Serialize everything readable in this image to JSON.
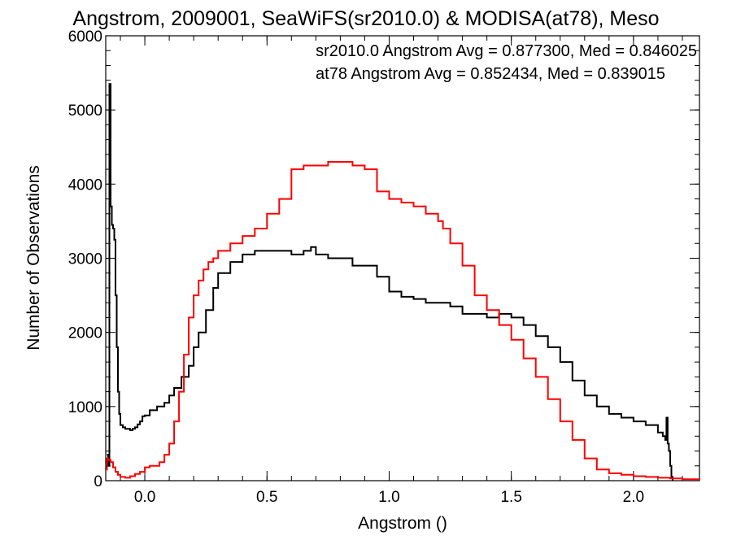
{
  "chart_data": {
    "type": "line",
    "title": "Angstrom, 2009001, SeaWiFS(sr2010.0) & MODISA(at78), Meso",
    "xlabel": "Angstrom ()",
    "ylabel": "Number of Observations",
    "xlim": [
      -0.16,
      2.27
    ],
    "ylim": [
      0,
      6000
    ],
    "x_ticks": [
      {
        "value": 0.0,
        "label": "0.0"
      },
      {
        "value": 0.5,
        "label": "0.5"
      },
      {
        "value": 1.0,
        "label": "1.0"
      },
      {
        "value": 1.5,
        "label": "1.5"
      },
      {
        "value": 2.0,
        "label": "2.0"
      }
    ],
    "y_ticks": [
      {
        "value": 0,
        "label": "0"
      },
      {
        "value": 1000,
        "label": "1000"
      },
      {
        "value": 2000,
        "label": "2000"
      },
      {
        "value": 3000,
        "label": "3000"
      },
      {
        "value": 4000,
        "label": "4000"
      },
      {
        "value": 5000,
        "label": "5000"
      },
      {
        "value": 6000,
        "label": "6000"
      }
    ],
    "grid": false,
    "legend": "none",
    "annotations": [
      {
        "text": "sr2010.0 Angstrom Avg = 0.877300, Med = 0.846025",
        "color": "#000000"
      },
      {
        "text": "at78 Angstrom Avg = 0.852434, Med = 0.839015",
        "color": "#ff0000"
      }
    ],
    "series": [
      {
        "color": "#000000",
        "x": [
          -0.155,
          -0.15,
          -0.145,
          -0.14,
          -0.135,
          -0.13,
          -0.125,
          -0.12,
          -0.115,
          -0.11,
          -0.105,
          -0.1,
          -0.09,
          -0.08,
          -0.07,
          -0.06,
          -0.05,
          -0.04,
          -0.03,
          -0.02,
          -0.01,
          0.0,
          0.02,
          0.05,
          0.08,
          0.1,
          0.12,
          0.15,
          0.18,
          0.2,
          0.22,
          0.25,
          0.28,
          0.3,
          0.35,
          0.4,
          0.45,
          0.5,
          0.55,
          0.6,
          0.65,
          0.68,
          0.7,
          0.75,
          0.8,
          0.85,
          0.9,
          0.95,
          1.0,
          1.05,
          1.1,
          1.15,
          1.2,
          1.25,
          1.3,
          1.35,
          1.4,
          1.45,
          1.5,
          1.55,
          1.6,
          1.65,
          1.7,
          1.75,
          1.8,
          1.85,
          1.9,
          1.95,
          2.0,
          2.05,
          2.1,
          2.12,
          2.13,
          2.135,
          2.14,
          2.145,
          2.15,
          2.155,
          2.16
        ],
        "values": [
          350,
          200,
          5350,
          3700,
          3450,
          3400,
          3250,
          2500,
          1800,
          1200,
          900,
          750,
          720,
          700,
          700,
          680,
          700,
          720,
          760,
          800,
          870,
          880,
          950,
          1000,
          1050,
          1150,
          1250,
          1400,
          1550,
          1800,
          2000,
          2300,
          2600,
          2800,
          2950,
          3050,
          3100,
          3100,
          3100,
          3050,
          3100,
          3150,
          3050,
          3000,
          3000,
          2900,
          2900,
          2750,
          2550,
          2480,
          2450,
          2400,
          2400,
          2350,
          2250,
          2250,
          2200,
          2250,
          2200,
          2100,
          1950,
          1800,
          1600,
          1350,
          1150,
          1000,
          900,
          850,
          800,
          750,
          650,
          600,
          550,
          850,
          500,
          400,
          200,
          50,
          0
        ]
      },
      {
        "color": "#ff0000",
        "x": [
          -0.16,
          -0.155,
          -0.15,
          -0.14,
          -0.13,
          -0.12,
          -0.11,
          -0.1,
          -0.08,
          -0.06,
          -0.04,
          -0.02,
          0.0,
          0.02,
          0.04,
          0.06,
          0.08,
          0.1,
          0.12,
          0.14,
          0.16,
          0.18,
          0.2,
          0.22,
          0.24,
          0.26,
          0.28,
          0.3,
          0.35,
          0.4,
          0.45,
          0.5,
          0.55,
          0.6,
          0.65,
          0.7,
          0.75,
          0.8,
          0.85,
          0.9,
          0.95,
          1.0,
          1.05,
          1.1,
          1.15,
          1.2,
          1.22,
          1.25,
          1.3,
          1.35,
          1.4,
          1.45,
          1.5,
          1.55,
          1.6,
          1.65,
          1.7,
          1.75,
          1.8,
          1.85,
          1.9,
          1.95,
          2.0,
          2.05,
          2.1,
          2.15,
          2.2,
          2.27
        ],
        "values": [
          150,
          300,
          280,
          250,
          180,
          120,
          80,
          50,
          40,
          60,
          90,
          120,
          180,
          200,
          200,
          250,
          350,
          500,
          800,
          1200,
          1700,
          2200,
          2500,
          2700,
          2850,
          2950,
          3000,
          3100,
          3200,
          3300,
          3400,
          3600,
          3800,
          4200,
          4250,
          4250,
          4300,
          4300,
          4250,
          4200,
          3900,
          3800,
          3750,
          3700,
          3600,
          3500,
          3400,
          3200,
          2900,
          2500,
          2300,
          2100,
          1900,
          1650,
          1400,
          1100,
          800,
          550,
          300,
          150,
          100,
          80,
          60,
          50,
          40,
          30,
          20,
          10
        ]
      }
    ]
  }
}
